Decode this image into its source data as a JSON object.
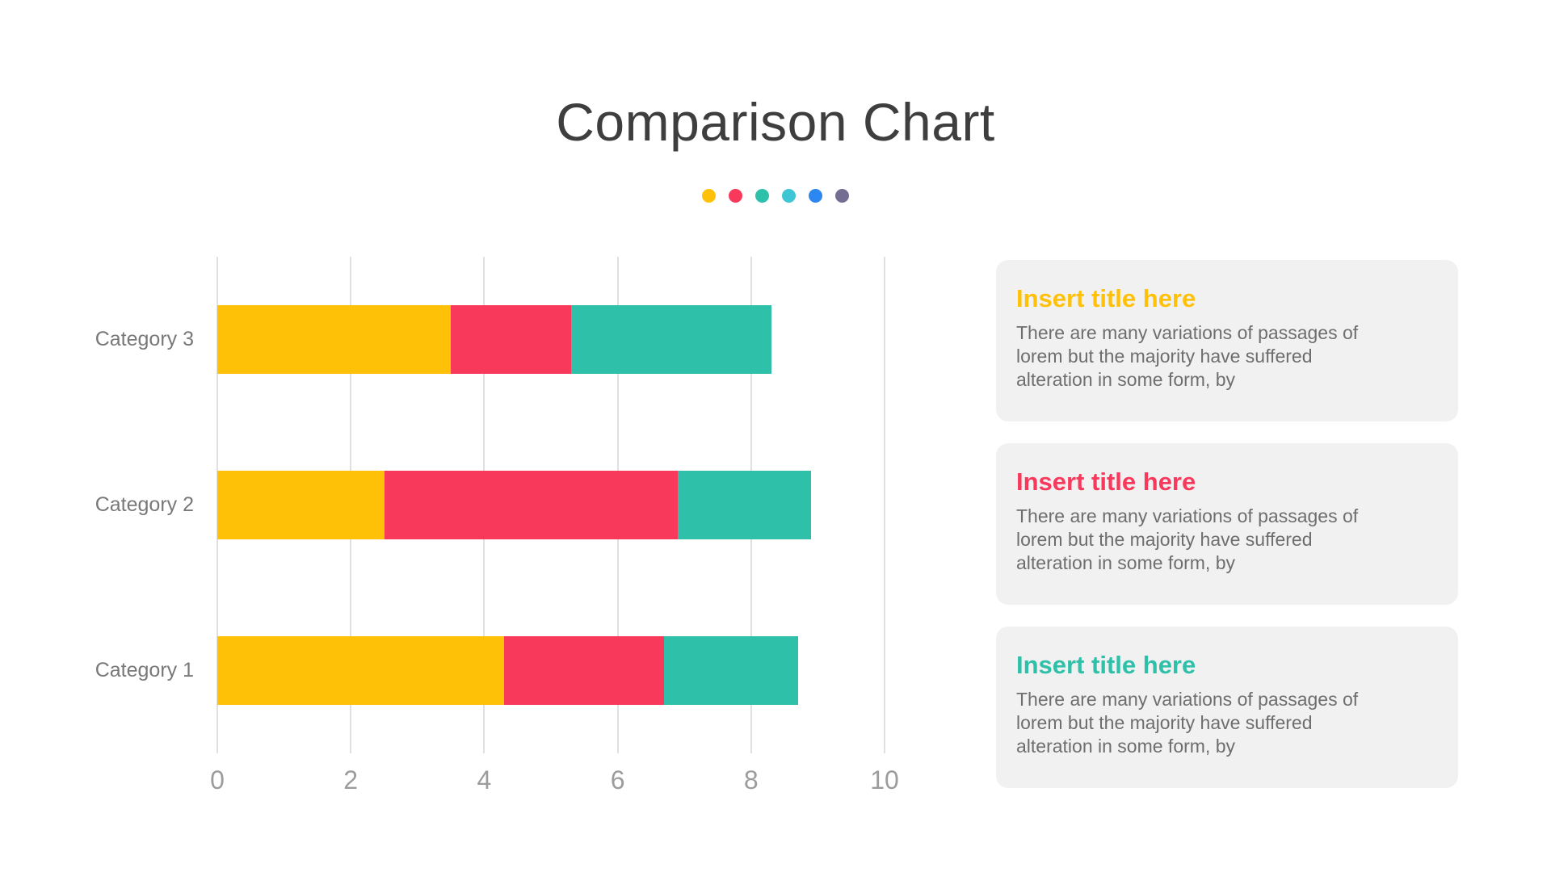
{
  "title": "Comparison Chart",
  "accent_dots": [
    "#FFC107",
    "#F8395C",
    "#2EC0A8",
    "#3EC6D4",
    "#2D87F1",
    "#756E93"
  ],
  "chart_data": {
    "type": "bar",
    "orientation": "horizontal",
    "stacked": true,
    "categories": [
      "Category 3",
      "Category 2",
      "Category 1"
    ],
    "series": [
      {
        "name": "yellow-segment",
        "color": "#FFC107",
        "values": [
          3.5,
          2.5,
          4.3
        ]
      },
      {
        "name": "pink-segment",
        "color": "#F8395C",
        "values": [
          1.8,
          4.4,
          2.4
        ]
      },
      {
        "name": "teal-segment",
        "color": "#2EC0A8",
        "values": [
          3.0,
          2.0,
          2.0
        ]
      }
    ],
    "totals": [
      8.3,
      8.9,
      8.7
    ],
    "xlim": [
      0,
      10
    ],
    "x_ticks": [
      "0",
      "2",
      "4",
      "6",
      "8",
      "10"
    ],
    "grid": "vertical-only",
    "legend": "none",
    "axis_lines": "none"
  },
  "cards": [
    {
      "title": "Insert title here",
      "accent": "#FFC107",
      "body_lines": [
        "There are many variations of passages of",
        "lorem but the majority have suffered",
        "alteration in some form, by"
      ]
    },
    {
      "title": "Insert title here",
      "accent": "#F8395C",
      "body_lines": [
        "There are many variations of passages of",
        "lorem but the majority have suffered",
        "alteration in some form, by"
      ]
    },
    {
      "title": "Insert title here",
      "accent": "#2EC0A8",
      "body_lines": [
        "There are many variations of passages of",
        "lorem but the majority have suffered",
        "alteration in some form, by"
      ]
    }
  ]
}
